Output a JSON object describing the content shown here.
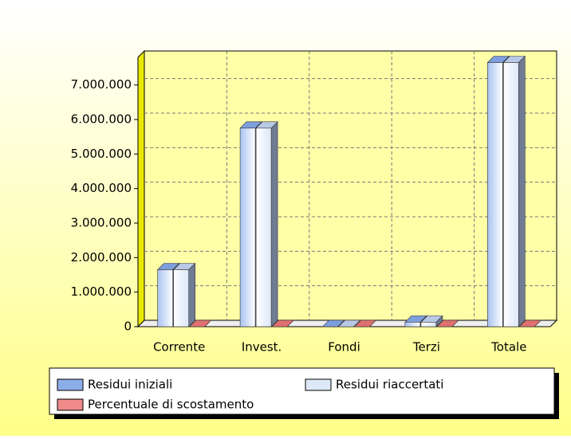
{
  "chart_data": {
    "type": "bar3d",
    "categories": [
      "Corrente",
      "Invest.",
      "Fondi",
      "Terzi",
      "Totale"
    ],
    "series": [
      {
        "name": "Residui iniziali",
        "color": "#8caee8",
        "values": [
          1650000,
          5750000,
          0,
          130000,
          7650000
        ]
      },
      {
        "name": "Residui riaccertati",
        "color": "#dce7f8",
        "values": [
          1650000,
          5750000,
          0,
          130000,
          7650000
        ]
      },
      {
        "name": "Percentuale di scostamento",
        "color": "#f08a8a",
        "values": [
          0,
          0,
          0,
          0,
          0
        ]
      }
    ],
    "ylim": [
      0,
      7800000
    ],
    "yticks": [
      0,
      {
        "value": 1000000,
        "label": "1.000.000"
      },
      {
        "value": 2000000,
        "label": "2.000.000"
      },
      {
        "value": 3000000,
        "label": "3.000.000"
      },
      {
        "value": 4000000,
        "label": "4.000.000"
      },
      {
        "value": 5000000,
        "label": "5.000.000"
      },
      {
        "value": 6000000,
        "label": "6.000.000"
      },
      {
        "value": 7000000,
        "label": "7.000.000"
      }
    ],
    "grid": true,
    "legend": "bottom"
  }
}
